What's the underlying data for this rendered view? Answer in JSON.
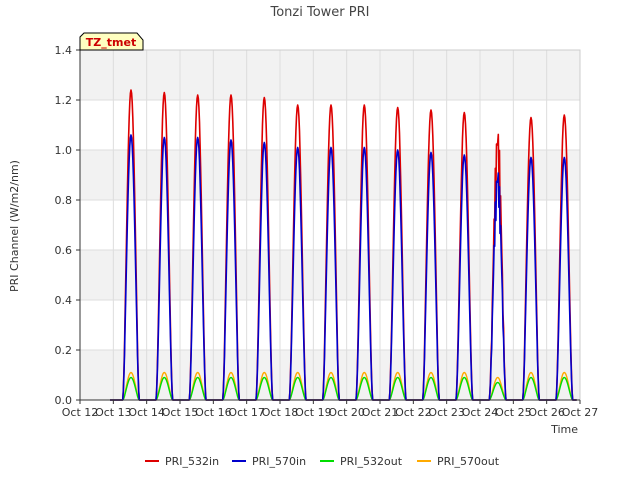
{
  "chart_data": {
    "type": "line",
    "title": "Tonzi Tower PRI",
    "xlabel": "Time",
    "ylabel": "PRI Channel (W/m2/nm)",
    "annotation": "TZ_tmet",
    "xlim": [
      12,
      27
    ],
    "ylim": [
      0,
      1.4
    ],
    "x_ticks": [
      12,
      13,
      14,
      15,
      16,
      17,
      18,
      19,
      20,
      21,
      22,
      23,
      24,
      25,
      26,
      27
    ],
    "x_tick_labels": [
      "Oct 12",
      "Oct 13",
      "Oct 14",
      "Oct 15",
      "Oct 16",
      "Oct 17",
      "Oct 18",
      "Oct 19",
      "Oct 20",
      "Oct 21",
      "Oct 22",
      "Oct 23",
      "Oct 24",
      "Oct 25",
      "Oct 26",
      "Oct 27"
    ],
    "y_ticks": [
      0,
      0.2,
      0.4,
      0.6,
      0.8,
      1.0,
      1.2,
      1.4
    ],
    "y_tick_labels": [
      "0.0",
      "0.2",
      "0.4",
      "0.6",
      "0.8",
      "1.0",
      "1.2",
      "1.4"
    ],
    "days": [
      13,
      14,
      15,
      16,
      17,
      18,
      19,
      20,
      21,
      22,
      23,
      24,
      25,
      26
    ],
    "solar_noon_offset": 0.53,
    "day_halfwidth": 0.25,
    "series": [
      {
        "name": "PRI_532in",
        "color": "#dd0000",
        "daily_peaks": [
          1.24,
          1.23,
          1.22,
          1.22,
          1.21,
          1.18,
          1.18,
          1.18,
          1.17,
          1.16,
          1.15,
          1.03,
          1.13,
          1.14
        ]
      },
      {
        "name": "PRI_570in",
        "color": "#0000cc",
        "daily_peaks": [
          1.06,
          1.05,
          1.05,
          1.04,
          1.03,
          1.01,
          1.01,
          1.01,
          1.0,
          0.99,
          0.98,
          0.88,
          0.97,
          0.97
        ]
      },
      {
        "name": "PRI_532out",
        "color": "#00dd00",
        "daily_peaks": [
          0.09,
          0.09,
          0.09,
          0.09,
          0.09,
          0.09,
          0.09,
          0.09,
          0.09,
          0.09,
          0.09,
          0.07,
          0.09,
          0.09
        ]
      },
      {
        "name": "PRI_570out",
        "color": "#ffaa00",
        "daily_peaks": [
          0.11,
          0.11,
          0.11,
          0.11,
          0.11,
          0.11,
          0.11,
          0.11,
          0.11,
          0.11,
          0.11,
          0.09,
          0.11,
          0.11
        ]
      }
    ]
  }
}
